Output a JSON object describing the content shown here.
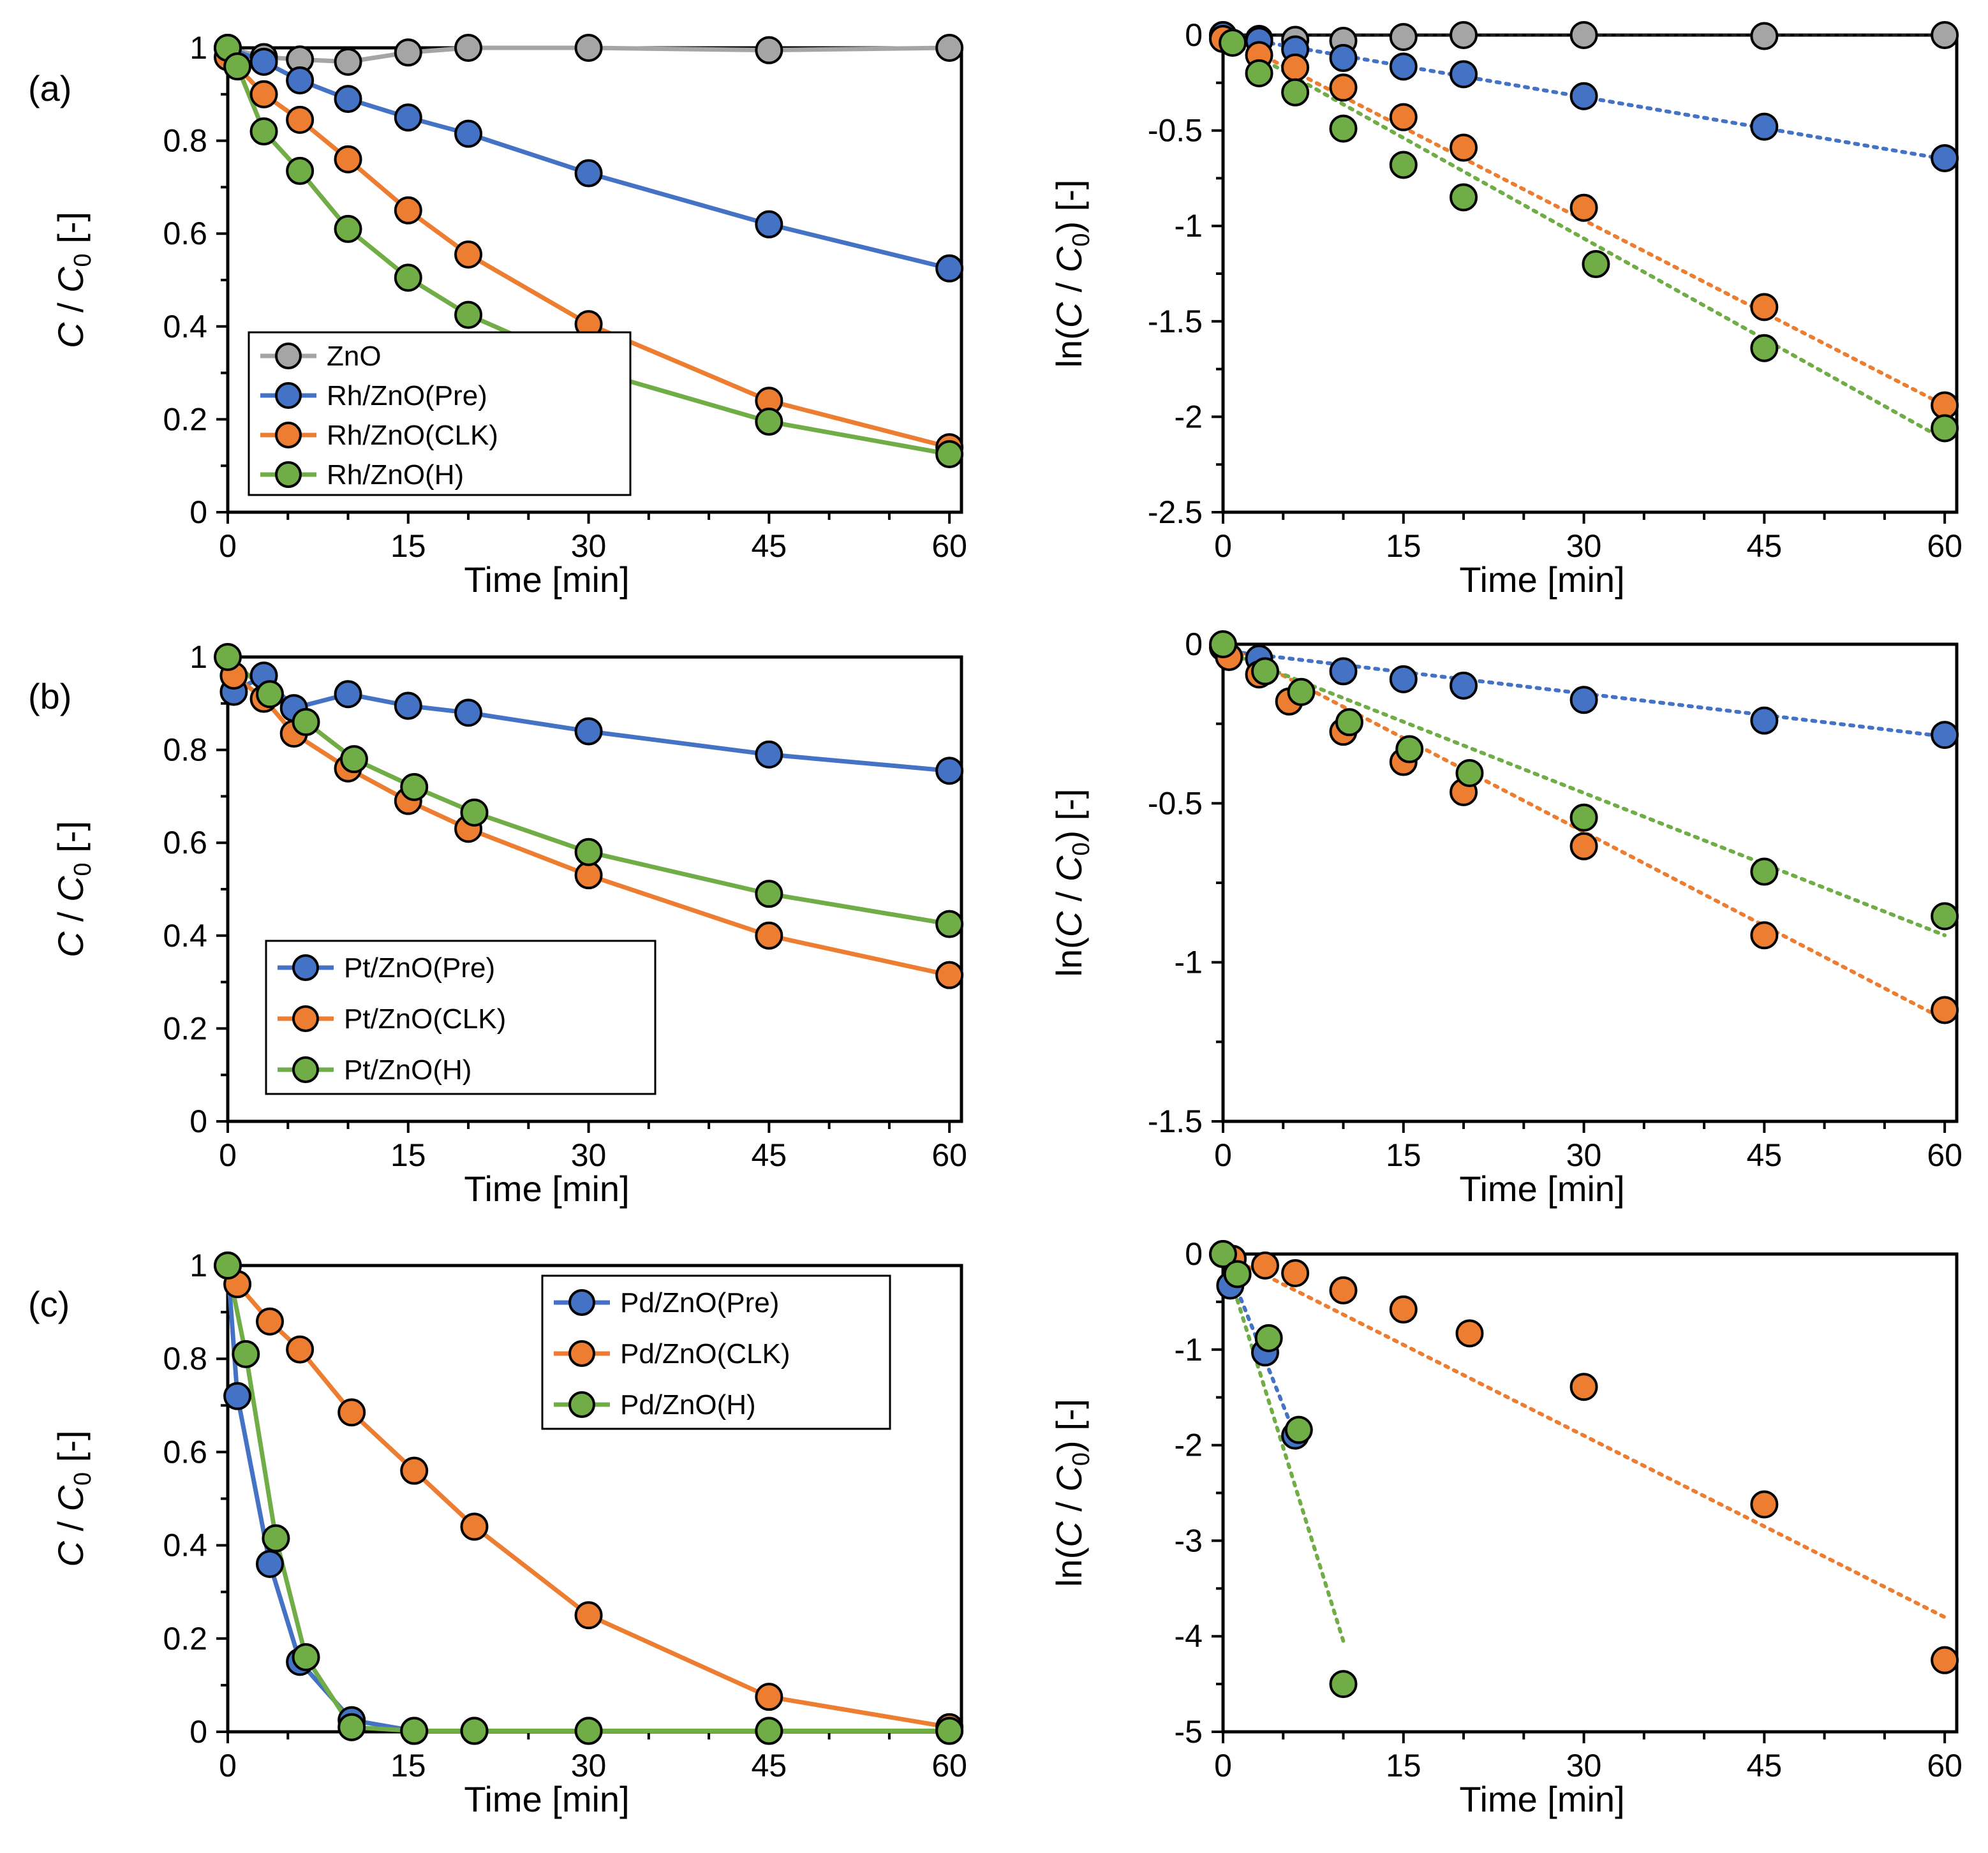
{
  "figure_title": "",
  "colors": {
    "ZnO": "#a5a5a5",
    "Pre": "#4472c4",
    "CLK": "#ed7d31",
    "H": "#70ad47",
    "axis": "#000000"
  },
  "chart_data": [
    {
      "id": "a-left",
      "panel_label": "(a)",
      "type": "line",
      "xlabel": "Time [min]",
      "ylabel_parts": [
        "C",
        " / ",
        "C",
        "0",
        " [-]"
      ],
      "xlim": [
        0,
        61
      ],
      "ylim": [
        0,
        1
      ],
      "xticks": [
        0,
        15,
        30,
        45,
        60
      ],
      "yticks": [
        0,
        0.2,
        0.4,
        0.6,
        0.8,
        1
      ],
      "legend": {
        "position": "bottom-left",
        "entries": [
          "ZnO",
          "Rh/ZnO(Pre)",
          "Rh/ZnO(CLK)",
          "Rh/ZnO(H)"
        ]
      },
      "series": [
        {
          "name": "ZnO",
          "color_key": "ZnO",
          "x": [
            0,
            3,
            6,
            10,
            15,
            20,
            30,
            45,
            60
          ],
          "y": [
            1.0,
            0.98,
            0.975,
            0.97,
            0.99,
            1.0,
            1.0,
            0.995,
            1.0
          ]
        },
        {
          "name": "Rh/ZnO(Pre)",
          "color_key": "Pre",
          "x": [
            0,
            3,
            6,
            10,
            15,
            20,
            30,
            45,
            60
          ],
          "y": [
            1.0,
            0.97,
            0.93,
            0.89,
            0.85,
            0.815,
            0.73,
            0.62,
            0.525
          ]
        },
        {
          "name": "Rh/ZnO(CLK)",
          "color_key": "CLK",
          "x": [
            0,
            3,
            6,
            10,
            15,
            20,
            30,
            45,
            60
          ],
          "y": [
            0.98,
            0.9,
            0.845,
            0.76,
            0.65,
            0.555,
            0.405,
            0.24,
            0.14
          ]
        },
        {
          "name": "Rh/ZnO(H)",
          "color_key": "H",
          "x": [
            0,
            0.8,
            3,
            6,
            10,
            15,
            20,
            31,
            45,
            60
          ],
          "y": [
            1.0,
            0.96,
            0.82,
            0.735,
            0.61,
            0.505,
            0.425,
            0.3,
            0.195,
            0.125
          ]
        }
      ]
    },
    {
      "id": "a-right",
      "panel_label": "",
      "type": "scatter",
      "xlabel": "Time [min]",
      "ylabel_parts": [
        "ln(",
        "C",
        " / ",
        "C",
        "0",
        ") [-]"
      ],
      "xlim": [
        0,
        61
      ],
      "ylim": [
        -2.5,
        0
      ],
      "xticks": [
        0,
        15,
        30,
        45,
        60
      ],
      "yticks": [
        -2.5,
        -2,
        -1.5,
        -1,
        -0.5,
        0
      ],
      "ytick_labels": [
        "-2.5",
        "-2",
        "-1.5",
        "-1",
        "-0.5",
        "0"
      ],
      "series": [
        {
          "name": "ZnO",
          "color_key": "ZnO",
          "x": [
            0,
            3,
            6,
            10,
            15,
            20,
            30,
            45,
            60
          ],
          "y": [
            0,
            -0.02,
            -0.025,
            -0.03,
            -0.01,
            0,
            0,
            -0.005,
            0
          ],
          "fit": [
            [
              0,
              0
            ],
            [
              60,
              0
            ]
          ]
        },
        {
          "name": "Rh/ZnO(Pre)",
          "color_key": "Pre",
          "x": [
            0,
            3,
            6,
            10,
            15,
            20,
            30,
            45,
            60
          ],
          "y": [
            0,
            -0.03,
            -0.075,
            -0.12,
            -0.165,
            -0.205,
            -0.32,
            -0.48,
            -0.645
          ],
          "fit": [
            [
              0,
              0
            ],
            [
              60,
              -0.65
            ]
          ]
        },
        {
          "name": "Rh/ZnO(CLK)",
          "color_key": "CLK",
          "x": [
            0,
            3,
            6,
            10,
            15,
            20,
            30,
            45,
            60
          ],
          "y": [
            -0.02,
            -0.105,
            -0.17,
            -0.275,
            -0.43,
            -0.59,
            -0.905,
            -1.425,
            -1.94
          ],
          "fit": [
            [
              0,
              0
            ],
            [
              60,
              -1.94
            ]
          ]
        },
        {
          "name": "Rh/ZnO(H)",
          "color_key": "H",
          "x": [
            0.8,
            3,
            6,
            10,
            15,
            20,
            31,
            45,
            60
          ],
          "y": [
            -0.04,
            -0.2,
            -0.3,
            -0.49,
            -0.68,
            -0.85,
            -1.2,
            -1.64,
            -2.06
          ],
          "fit": [
            [
              0.8,
              -0.04
            ],
            [
              60,
              -2.12
            ]
          ]
        }
      ]
    },
    {
      "id": "b-left",
      "panel_label": "(b)",
      "type": "line",
      "xlabel": "Time [min]",
      "ylabel_parts": [
        "C",
        " / ",
        "C",
        "0",
        " [-]"
      ],
      "xlim": [
        0,
        61
      ],
      "ylim": [
        0,
        1
      ],
      "xticks": [
        0,
        15,
        30,
        45,
        60
      ],
      "yticks": [
        0,
        0.2,
        0.4,
        0.6,
        0.8,
        1
      ],
      "legend": {
        "position": "bottom-left",
        "entries": [
          "Pt/ZnO(Pre)",
          "Pt/ZnO(CLK)",
          "Pt/ZnO(H)"
        ]
      },
      "series": [
        {
          "name": "Pt/ZnO(Pre)",
          "color_key": "Pre",
          "x": [
            0.5,
            3,
            5.5,
            10,
            15,
            20,
            30,
            45,
            60
          ],
          "y": [
            0.925,
            0.96,
            0.89,
            0.92,
            0.895,
            0.88,
            0.84,
            0.79,
            0.755
          ]
        },
        {
          "name": "Pt/ZnO(CLK)",
          "color_key": "CLK",
          "x": [
            0.5,
            3,
            5.5,
            10,
            15,
            20,
            30,
            45,
            60
          ],
          "y": [
            0.96,
            0.91,
            0.835,
            0.76,
            0.69,
            0.63,
            0.53,
            0.4,
            0.315
          ]
        },
        {
          "name": "Pt/ZnO(H)",
          "color_key": "H",
          "x": [
            0,
            3.5,
            6.5,
            10.5,
            15.5,
            20.5,
            30,
            45,
            60
          ],
          "y": [
            1.0,
            0.92,
            0.86,
            0.78,
            0.72,
            0.665,
            0.58,
            0.49,
            0.425
          ]
        }
      ]
    },
    {
      "id": "b-right",
      "panel_label": "",
      "type": "scatter",
      "xlabel": "Time [min]",
      "ylabel_parts": [
        "ln(",
        "C",
        " / ",
        "C",
        "0",
        ") [-]"
      ],
      "xlim": [
        0,
        61
      ],
      "ylim": [
        -1.5,
        0
      ],
      "xticks": [
        0,
        15,
        30,
        45,
        60
      ],
      "yticks": [
        -1.5,
        -1,
        -0.5,
        0
      ],
      "ytick_labels": [
        "-1.5",
        "-1",
        "-0.5",
        "0"
      ],
      "series": [
        {
          "name": "Pt/ZnO(Pre)",
          "color_key": "Pre",
          "x": [
            0,
            3,
            10,
            15,
            20,
            30,
            45,
            60
          ],
          "y": [
            -0.01,
            -0.045,
            -0.085,
            -0.11,
            -0.13,
            -0.175,
            -0.24,
            -0.285
          ],
          "fit": [
            [
              0,
              -0.02
            ],
            [
              60,
              -0.29
            ]
          ]
        },
        {
          "name": "Pt/ZnO(CLK)",
          "color_key": "CLK",
          "x": [
            0.5,
            3,
            5.5,
            10,
            15,
            20,
            30,
            45,
            60
          ],
          "y": [
            -0.04,
            -0.095,
            -0.18,
            -0.275,
            -0.37,
            -0.465,
            -0.635,
            -0.915,
            -1.15
          ],
          "fit": [
            [
              0,
              0
            ],
            [
              60,
              -1.18
            ]
          ]
        },
        {
          "name": "Pt/ZnO(H)",
          "color_key": "H",
          "x": [
            0,
            3.5,
            6.5,
            10.5,
            15.5,
            20.5,
            30,
            45,
            60
          ],
          "y": [
            0,
            -0.085,
            -0.15,
            -0.245,
            -0.33,
            -0.405,
            -0.545,
            -0.715,
            -0.855
          ],
          "fit": [
            [
              0,
              -0.02
            ],
            [
              60,
              -0.915
            ]
          ]
        }
      ]
    },
    {
      "id": "c-left",
      "panel_label": "(c)",
      "type": "line",
      "xlabel": "Time [min]",
      "ylabel_parts": [
        "C",
        " / ",
        "C",
        "0",
        " [-]"
      ],
      "xlim": [
        0,
        61
      ],
      "ylim": [
        0,
        1
      ],
      "xticks": [
        0,
        15,
        30,
        45,
        60
      ],
      "yticks": [
        0,
        0.2,
        0.4,
        0.6,
        0.8,
        1
      ],
      "legend": {
        "position": "top-right",
        "entries": [
          "Pd/ZnO(Pre)",
          "Pd/ZnO(CLK)",
          "Pd/ZnO(H)"
        ]
      },
      "series": [
        {
          "name": "Pd/ZnO(Pre)",
          "color_key": "Pre",
          "x": [
            0,
            0.8,
            3.5,
            6,
            10.3,
            15.5,
            20.5,
            30,
            45,
            60
          ],
          "y": [
            1.0,
            0.72,
            0.36,
            0.15,
            0.025,
            0.002,
            0.002,
            0.002,
            0.002,
            0.002
          ]
        },
        {
          "name": "Pd/ZnO(CLK)",
          "color_key": "CLK",
          "x": [
            0.8,
            3.5,
            6,
            10.3,
            15.5,
            20.5,
            30,
            45,
            60
          ],
          "y": [
            0.96,
            0.88,
            0.82,
            0.685,
            0.56,
            0.44,
            0.25,
            0.075,
            0.01
          ]
        },
        {
          "name": "Pd/ZnO(H)",
          "color_key": "H",
          "x": [
            0,
            1.5,
            4,
            6.5,
            10.3,
            15.5,
            20.5,
            30,
            45,
            60
          ],
          "y": [
            1.0,
            0.81,
            0.415,
            0.16,
            0.01,
            0.002,
            0.002,
            0.002,
            0.002,
            0.002
          ]
        }
      ]
    },
    {
      "id": "c-right",
      "panel_label": "",
      "type": "scatter",
      "xlabel": "Time [min]",
      "ylabel_parts": [
        "ln(",
        "C",
        " / ",
        "C",
        "0",
        ") [-]"
      ],
      "xlim": [
        0,
        61
      ],
      "ylim": [
        -5,
        0
      ],
      "xticks": [
        0,
        15,
        30,
        45,
        60
      ],
      "yticks": [
        -5,
        -4,
        -3,
        -2,
        -1,
        0
      ],
      "ytick_labels": [
        "-5",
        "-4",
        "-3",
        "-2",
        "-1",
        "0"
      ],
      "series": [
        {
          "name": "Pd/ZnO(Pre)",
          "color_key": "Pre",
          "x": [
            0,
            0.6,
            3.5,
            6
          ],
          "y": [
            0,
            -0.33,
            -1.03,
            -1.9
          ],
          "fit": [
            [
              0,
              0
            ],
            [
              6,
              -1.9
            ]
          ]
        },
        {
          "name": "Pd/ZnO(CLK)",
          "color_key": "CLK",
          "x": [
            0.8,
            3.5,
            6,
            10,
            15,
            20.5,
            30,
            45,
            60
          ],
          "y": [
            -0.05,
            -0.12,
            -0.2,
            -0.38,
            -0.58,
            -0.83,
            -1.39,
            -2.62,
            -4.25
          ],
          "fit": [
            [
              0,
              0
            ],
            [
              60,
              -3.8
            ]
          ]
        },
        {
          "name": "Pd/ZnO(H)",
          "color_key": "H",
          "x": [
            0,
            1.2,
            3.8,
            6.3,
            10
          ],
          "y": [
            0,
            -0.21,
            -0.88,
            -1.84,
            -4.5
          ],
          "fit": [
            [
              0,
              0
            ],
            [
              10,
              -4.05
            ]
          ]
        }
      ]
    }
  ]
}
